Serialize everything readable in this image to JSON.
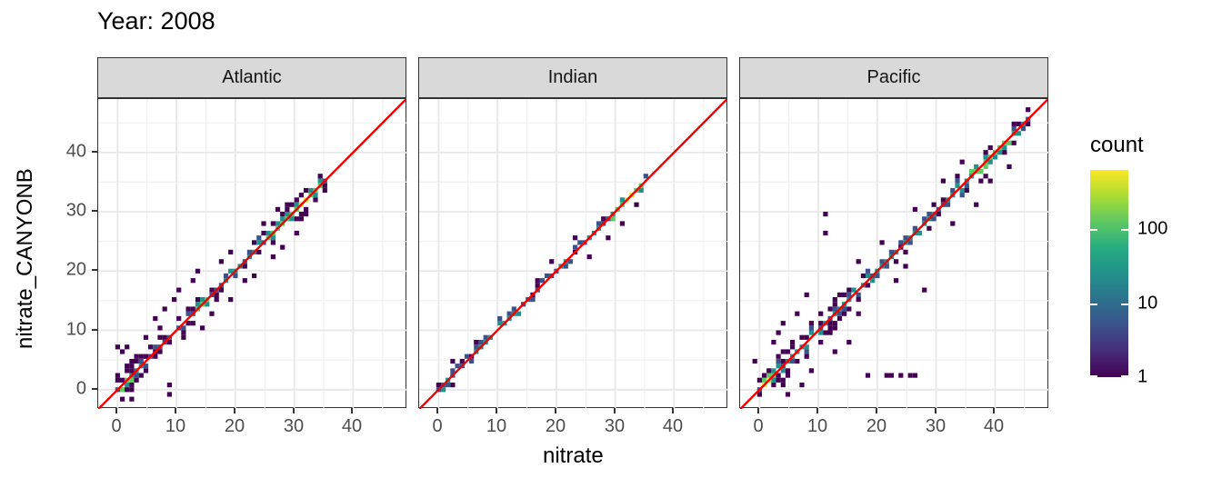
{
  "title": "Year: 2008",
  "facet_labels": [
    "Atlantic",
    "Indian",
    "Pacific"
  ],
  "axes": {
    "x_label": "nitrate",
    "y_label": "nitrate_CANYONB",
    "x_ticks": [
      0,
      10,
      20,
      30,
      40
    ],
    "y_ticks": [
      0,
      10,
      20,
      30,
      40
    ],
    "minor_ticks": [
      5,
      15,
      25,
      35,
      45
    ]
  },
  "legend": {
    "title": "count",
    "tick_labels": [
      "100",
      "10",
      "1"
    ],
    "tick_values": [
      100,
      10,
      1
    ]
  },
  "colors": {
    "strip_bg": "#d9d9d9",
    "panel_border": "#333333",
    "grid_major": "#e7e7e7",
    "grid_minor": "#f0f0f0",
    "tick_label": "#4d4d4d",
    "identity_line": "#f40000",
    "viridis_palette": [
      "#440154",
      "#3b528b",
      "#21918c",
      "#5ec962",
      "#fde725"
    ],
    "legend_gradient": [
      "#440154",
      "#472d7b",
      "#3b528b",
      "#2c728e",
      "#21918c",
      "#27ad81",
      "#5ec962",
      "#aadc32",
      "#fde725"
    ]
  },
  "chart_data": {
    "type": "heatmap",
    "subtype": "2d-bin count (geom_bin2d), faceted by ocean basin",
    "title": "Year: 2008",
    "xlabel": "nitrate",
    "ylabel": "nitrate_CANYONB",
    "xlim": [
      -3.3,
      49.2
    ],
    "ylim": [
      -3.25,
      49.0
    ],
    "bin_size": 0.8,
    "grid": true,
    "legend_position": "right",
    "color_scale": {
      "name": "viridis",
      "trans": "log10",
      "domain": [
        1,
        630
      ],
      "label": "count"
    },
    "identity_line": {
      "equation": "y = x",
      "color": "#f40000"
    },
    "facets": [
      {
        "name": "Atlantic",
        "diag_start": -0.4,
        "diag_end": 35.6,
        "seed": 7,
        "neighbor_p": 0.78,
        "spread": [
          [
            4,
            2.8
          ],
          [
            8,
            2.0
          ],
          [
            26,
            1.6
          ],
          [
            99,
            2.3
          ]
        ],
        "hotspots": [
          {
            "at": 0.8,
            "r": 1.3,
            "l": 4
          },
          {
            "at": 3,
            "r": 1.4,
            "l": 3
          },
          {
            "at": 14,
            "r": 1.2,
            "l": 4
          },
          {
            "at": 19.5,
            "r": 1.5,
            "l": 3
          },
          {
            "at": 23,
            "r": 1.0,
            "l": 3
          },
          {
            "at": 26.5,
            "r": 1.5,
            "l": 4
          },
          {
            "at": 29.5,
            "r": 2.4,
            "l": 4
          },
          {
            "at": 31.5,
            "r": 0.9,
            "l": 5
          },
          {
            "at": 33.2,
            "r": 1.4,
            "l": 4
          }
        ],
        "outliers": [
          [
            8.5,
            -0.5
          ],
          [
            9.2,
            1
          ],
          [
            -0.2,
            7.4
          ],
          [
            0.6,
            6.3
          ],
          [
            1.4,
            7.2
          ],
          [
            2.2,
            5
          ],
          [
            3.5,
            5.8
          ],
          [
            5,
            9
          ],
          [
            6.2,
            12.3
          ],
          [
            7,
            10.5
          ],
          [
            8,
            13.5
          ],
          [
            9.3,
            15.3
          ],
          [
            10.5,
            17
          ],
          [
            11.4,
            8.4
          ],
          [
            12.4,
            18.1
          ],
          [
            13.4,
            19.9
          ],
          [
            14.2,
            10.1
          ],
          [
            16,
            12.5
          ],
          [
            18.8,
            15.5
          ],
          [
            17.5,
            21.5
          ],
          [
            19,
            23.2
          ],
          [
            21.5,
            18
          ],
          [
            23,
            19.5
          ],
          [
            24.5,
            28
          ],
          [
            26,
            22.5
          ],
          [
            27,
            30.3
          ],
          [
            28,
            24
          ],
          [
            30,
            26.5
          ],
          [
            2.5,
            -1.3
          ],
          [
            4.3,
            2.2
          ]
        ]
      },
      {
        "name": "Indian",
        "diag_start": -0.4,
        "diag_end": 35.3,
        "seed": 11,
        "neighbor_p": 0.5,
        "spread": [
          [
            99,
            0.8
          ]
        ],
        "hotspots": [
          {
            "at": 0.5,
            "r": 0.8,
            "l": 3
          },
          {
            "at": 8,
            "r": 2.0,
            "l": 3
          },
          {
            "at": 12,
            "r": 2.0,
            "l": 3
          },
          {
            "at": 21,
            "r": 1.0,
            "l": 3
          },
          {
            "at": 26,
            "r": 1.2,
            "l": 3
          },
          {
            "at": 30.5,
            "r": 1.6,
            "l": 4
          },
          {
            "at": 31.8,
            "r": 0.8,
            "l": 5
          },
          {
            "at": 33.5,
            "r": 1.2,
            "l": 4
          }
        ],
        "outliers": [
          [
            2,
            4.6
          ],
          [
            2.2,
            0.8
          ],
          [
            16.5,
            18.3
          ],
          [
            19.5,
            21.8
          ],
          [
            23.5,
            25.8
          ],
          [
            25.8,
            22.5
          ],
          [
            28.5,
            25.3
          ],
          [
            31,
            28
          ],
          [
            33.8,
            31.5
          ],
          [
            6.5,
            8.2
          ]
        ]
      },
      {
        "name": "Pacific",
        "diag_start": -0.4,
        "diag_end": 46.3,
        "seed": 23,
        "neighbor_p": 0.8,
        "spread": [
          [
            3,
            2.6
          ],
          [
            16,
            3.2
          ],
          [
            35,
            1.3
          ],
          [
            99,
            1.7
          ]
        ],
        "hotspots": [
          {
            "at": 0.6,
            "r": 0.9,
            "l": 5
          },
          {
            "at": 2,
            "r": 1.4,
            "l": 4
          },
          {
            "at": 5,
            "r": 2.0,
            "l": 3
          },
          {
            "at": 9,
            "r": 2.0,
            "l": 3
          },
          {
            "at": 14,
            "r": 2.0,
            "l": 3
          },
          {
            "at": 20,
            "r": 3.0,
            "l": 3
          },
          {
            "at": 27,
            "r": 3.0,
            "l": 3
          },
          {
            "at": 33,
            "r": 2.0,
            "l": 3
          },
          {
            "at": 37,
            "r": 2.0,
            "l": 4
          },
          {
            "at": 41,
            "r": 2.0,
            "l": 4
          },
          {
            "at": 44.5,
            "r": 1.6,
            "l": 3
          }
        ],
        "outliers": [
          [
            11,
            29.7
          ],
          [
            11,
            26.5
          ],
          [
            16.5,
            21.9
          ],
          [
            20.5,
            24.7
          ],
          [
            28,
            17.2
          ],
          [
            18.7,
            2.7
          ],
          [
            21.3,
            2.7
          ],
          [
            22.1,
            2.7
          ],
          [
            23.8,
            2.7
          ],
          [
            25.3,
            2.7
          ],
          [
            26.1,
            2.7
          ],
          [
            -1,
            4.5
          ],
          [
            2,
            8
          ],
          [
            3.2,
            9.8
          ],
          [
            6,
            13
          ],
          [
            13,
            6
          ],
          [
            15,
            8.2
          ],
          [
            9,
            3.2
          ],
          [
            7,
            0.8
          ],
          [
            5,
            -0.8
          ],
          [
            17,
            13
          ],
          [
            23,
            18
          ],
          [
            25,
            20.5
          ],
          [
            26,
            30
          ],
          [
            31,
            35
          ],
          [
            33,
            28
          ],
          [
            34.5,
            38.5
          ],
          [
            36.5,
            31.5
          ],
          [
            39,
            35
          ],
          [
            42,
            37.8
          ],
          [
            8,
            16
          ],
          [
            4,
            11.5
          ]
        ]
      }
    ]
  }
}
